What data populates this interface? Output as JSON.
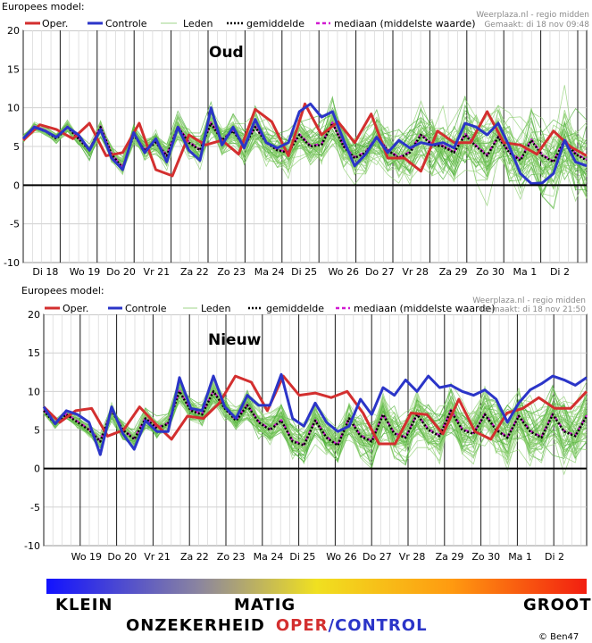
{
  "header_label": "Europees model:",
  "legend": {
    "oper": "Oper.",
    "controle": "Controle",
    "leden": "Leden",
    "gemiddelde": "gemiddelde",
    "mediaan": "mediaan (middelste waarde)"
  },
  "colors": {
    "oper": "#d32f2f",
    "control": "#2b35c8",
    "members": "#5cbf3f",
    "mean": "#000000",
    "median": "#d11ad1"
  },
  "panels": [
    {
      "label": "Oud",
      "source": "Weerplaza.nl - regio midden",
      "made": "Gemaakt: di 18 nov 09:48"
    },
    {
      "label": "Nieuw",
      "source": "Weerplaza.nl - regio midden",
      "made": "Gemaakt: di 18 nov 21:50"
    }
  ],
  "scale": {
    "left": "KLEIN",
    "middle": "MATIG",
    "right": "GROOT",
    "uncertainty": "ONZEKERHEID",
    "oper": "OPER",
    "slash": "/",
    "control": "CONTROL",
    "credit": "© Ben47"
  },
  "chart_data": [
    {
      "type": "line",
      "title": "Oud",
      "ylim": [
        -10,
        20
      ],
      "yticks": [
        -10,
        -5,
        0,
        5,
        10,
        15,
        20
      ],
      "day_labels": [
        "Di 18",
        "Wo 19",
        "Do 20",
        "Vr 21",
        "Za 22",
        "Zo 23",
        "Ma 24",
        "Di 25",
        "Wo 26",
        "Do 27",
        "Vr 28",
        "Za 29",
        "Zo 30",
        "Ma 1",
        "Di 2"
      ],
      "x_days_start": 0,
      "grid": true,
      "series": [
        {
          "name": "Oper.",
          "key": "oper",
          "values": [
            5.8,
            7.8,
            7.2,
            6.0,
            8.0,
            3.8,
            4.2,
            8.0,
            2.0,
            1.2,
            6.5,
            5.2,
            5.8,
            4.0,
            9.8,
            8.2,
            3.8,
            10.5,
            6.5,
            8.2,
            5.5,
            9.2,
            3.5,
            3.5,
            1.8,
            7.0,
            5.5,
            5.5,
            9.5,
            5.5,
            5.2,
            4.0,
            7.0,
            5.0,
            3.8
          ]
        },
        {
          "name": "Controle",
          "key": "control",
          "values": [
            6.0,
            7.5,
            7.0,
            6.2,
            7.5,
            6.5,
            4.5,
            7.2,
            3.5,
            2.0,
            6.8,
            4.2,
            6.0,
            3.0,
            7.5,
            4.5,
            3.2,
            10.0,
            5.2,
            7.5,
            4.8,
            8.5,
            5.5,
            4.8,
            5.5,
            9.5,
            10.5,
            8.8,
            9.5,
            5.8,
            2.5,
            4.0,
            6.2,
            4.2,
            5.8,
            4.8,
            5.5,
            5.2,
            5.5,
            4.8,
            8.0,
            7.5,
            6.5,
            8.0,
            5.0,
            1.5,
            0.2,
            0.3,
            1.5,
            5.8,
            3.0,
            2.5
          ]
        },
        {
          "name": "gemiddelde",
          "key": "mean",
          "values": [
            6.0,
            7.5,
            7.0,
            6.0,
            7.5,
            6.0,
            4.5,
            7.5,
            4.0,
            2.2,
            6.5,
            4.5,
            5.5,
            3.8,
            7.5,
            5.5,
            4.5,
            8.0,
            5.8,
            7.0,
            5.0,
            7.5,
            5.5,
            4.5,
            4.2,
            6.5,
            5.0,
            5.2,
            8.0,
            5.0,
            3.5,
            4.2,
            6.2,
            4.5,
            3.5,
            4.2,
            6.5,
            5.2,
            5.0,
            4.2,
            6.5,
            5.0,
            3.8,
            6.2,
            4.2,
            3.2,
            5.8,
            3.8,
            3.0,
            5.8,
            4.0,
            3.2
          ]
        },
        {
          "name": "mediaan (middelste waarde)",
          "key": "median",
          "values": [
            6.0,
            7.6,
            7.1,
            6.1,
            7.6,
            6.1,
            4.6,
            7.6,
            4.1,
            2.3,
            6.6,
            4.6,
            5.6,
            3.9,
            7.6,
            5.6,
            4.6,
            8.1,
            5.9,
            7.1,
            5.1,
            7.6,
            5.6,
            4.6,
            4.3,
            6.6,
            5.1,
            5.3,
            8.1,
            5.1,
            3.6,
            4.3,
            6.3,
            4.6,
            3.6,
            4.3,
            6.6,
            5.3,
            5.1,
            4.3,
            6.6,
            5.1,
            3.9,
            6.3,
            4.3,
            3.3,
            5.9,
            3.9,
            3.1,
            5.9,
            4.1,
            3.3
          ]
        }
      ]
    },
    {
      "type": "line",
      "title": "Nieuw",
      "ylim": [
        -10,
        20
      ],
      "yticks": [
        -10,
        -5,
        0,
        5,
        10,
        15,
        20
      ],
      "day_labels": [
        "Wo 19",
        "Do 20",
        "Vr 21",
        "Za 22",
        "Zo 23",
        "Ma 24",
        "Di 25",
        "Wo 26",
        "Do 27",
        "Vr 28",
        "Za 29",
        "Zo 30",
        "Ma 1",
        "Di 2"
      ],
      "x_days_start": 0.5,
      "grid": true,
      "series": [
        {
          "name": "Oper.",
          "key": "oper",
          "values": [
            8.0,
            6.0,
            7.5,
            7.8,
            4.2,
            5.0,
            8.0,
            5.8,
            3.8,
            6.8,
            6.5,
            8.5,
            12.0,
            11.2,
            7.5,
            12.0,
            9.5,
            9.8,
            9.2,
            10.0,
            7.2,
            3.2,
            3.2,
            7.2,
            7.0,
            4.5,
            9.0,
            4.8,
            3.8,
            7.2,
            7.8,
            9.2,
            7.8,
            7.8,
            10.0
          ]
        },
        {
          "name": "Controle",
          "key": "control",
          "values": [
            8.0,
            5.8,
            7.5,
            7.0,
            6.0,
            1.8,
            8.0,
            4.5,
            2.5,
            6.2,
            4.8,
            4.8,
            11.8,
            7.8,
            7.5,
            12.0,
            8.0,
            6.5,
            9.5,
            8.2,
            8.2,
            12.2,
            6.5,
            5.5,
            8.5,
            6.0,
            4.8,
            5.5,
            9.0,
            7.0,
            10.5,
            9.5,
            11.5,
            10.0,
            12.0,
            10.5,
            10.8,
            10.0,
            9.5,
            10.2,
            9.0,
            6.0,
            8.5,
            10.2,
            11.0,
            12.0,
            11.5,
            10.8,
            11.8
          ]
        },
        {
          "name": "gemiddelde",
          "key": "mean",
          "values": [
            7.5,
            5.8,
            7.0,
            6.0,
            5.0,
            3.5,
            7.5,
            5.0,
            3.8,
            6.5,
            5.2,
            5.8,
            10.0,
            7.5,
            7.0,
            10.0,
            7.8,
            6.2,
            8.2,
            6.0,
            5.0,
            6.2,
            3.5,
            3.0,
            6.2,
            4.0,
            3.0,
            6.5,
            4.2,
            3.5,
            7.0,
            4.5,
            4.0,
            7.0,
            5.0,
            4.2,
            7.5,
            5.0,
            4.5,
            7.0,
            5.0,
            4.0,
            6.8,
            4.8,
            4.0,
            7.0,
            4.8,
            4.2,
            6.8
          ]
        },
        {
          "name": "mediaan (middelste waarde)",
          "key": "median",
          "values": [
            7.6,
            5.9,
            7.1,
            6.1,
            5.1,
            3.6,
            7.6,
            5.1,
            3.9,
            6.6,
            5.3,
            5.9,
            10.1,
            7.6,
            7.1,
            10.1,
            7.9,
            6.3,
            8.3,
            6.1,
            5.1,
            6.3,
            3.6,
            3.1,
            6.3,
            4.1,
            3.1,
            6.6,
            4.3,
            3.6,
            7.1,
            4.6,
            4.1,
            7.1,
            5.1,
            4.3,
            7.6,
            5.1,
            4.6,
            7.1,
            5.1,
            4.1,
            6.9,
            4.9,
            4.1,
            7.1,
            4.9,
            4.3,
            6.9
          ]
        }
      ]
    }
  ]
}
